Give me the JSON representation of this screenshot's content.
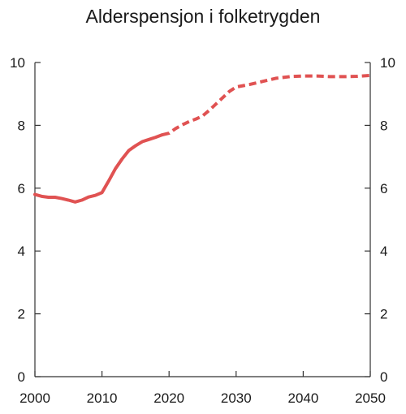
{
  "chart_data": {
    "type": "line",
    "title": "Alderspensjon i folketrygden",
    "xlabel": "",
    "ylabel": "",
    "xlim": [
      2000,
      2050
    ],
    "ylim": [
      0,
      10
    ],
    "x_ticks": [
      2000,
      2010,
      2020,
      2030,
      2040,
      2050
    ],
    "y_ticks": [
      0,
      2,
      4,
      6,
      8,
      10
    ],
    "grid": false,
    "legend": "none",
    "colors": {
      "series": "#e05252",
      "axis": "#333333",
      "text": "#1a1a1a"
    },
    "series": [
      {
        "style": "solid",
        "x": [
          2000,
          2001,
          2002,
          2003,
          2004,
          2005,
          2006,
          2007,
          2008,
          2009,
          2010,
          2011,
          2012,
          2013,
          2014,
          2015,
          2016,
          2017,
          2018,
          2019
        ],
        "y": [
          5.8,
          5.74,
          5.71,
          5.71,
          5.67,
          5.62,
          5.56,
          5.62,
          5.72,
          5.77,
          5.86,
          6.23,
          6.62,
          6.93,
          7.2,
          7.35,
          7.48,
          7.55,
          7.62,
          7.7
        ]
      },
      {
        "style": "dashed",
        "x": [
          2019,
          2020,
          2021,
          2022,
          2023,
          2024,
          2025,
          2026,
          2027,
          2028,
          2029,
          2030,
          2032,
          2034,
          2036,
          2038,
          2040,
          2042,
          2044,
          2046,
          2048,
          2050
        ],
        "y": [
          7.7,
          7.75,
          7.9,
          8.02,
          8.12,
          8.2,
          8.3,
          8.48,
          8.68,
          8.88,
          9.08,
          9.22,
          9.3,
          9.4,
          9.5,
          9.55,
          9.57,
          9.57,
          9.55,
          9.55,
          9.56,
          9.59
        ]
      }
    ]
  }
}
